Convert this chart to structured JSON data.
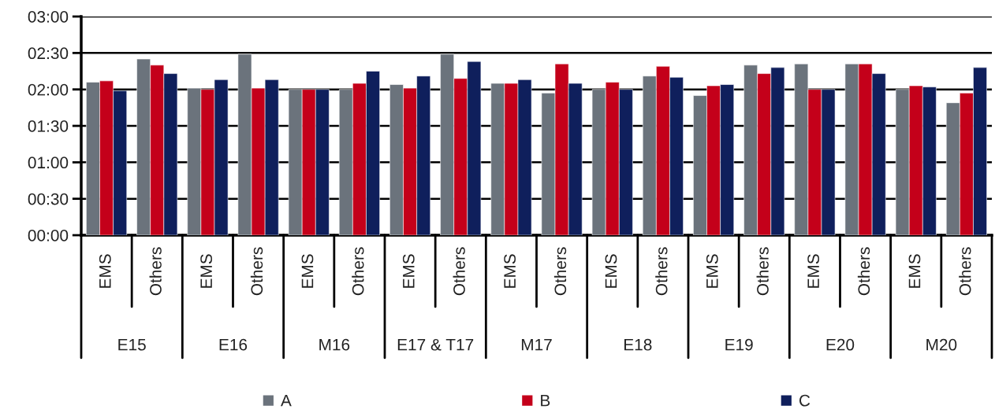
{
  "chart_data": {
    "type": "bar",
    "categories": [
      "EMS",
      "Others",
      "EMS",
      "Others",
      "EMS",
      "Others",
      "EMS",
      "Others",
      "EMS",
      "Others",
      "EMS",
      "Others",
      "EMS",
      "Others",
      "EMS",
      "Others",
      "EMS",
      "Others"
    ],
    "series": [
      {
        "name": "A",
        "color": "#6b737c",
        "values": [
          126,
          145,
          121,
          149,
          120,
          120,
          124,
          149,
          125,
          117,
          120,
          131,
          115,
          140,
          141,
          141,
          120,
          109
        ]
      },
      {
        "name": "B",
        "color": "#c4001a",
        "values": [
          127,
          140,
          120,
          121,
          120,
          125,
          121,
          129,
          125,
          141,
          126,
          139,
          123,
          133,
          120,
          141,
          123,
          117
        ]
      },
      {
        "name": "C",
        "color": "#0f1f5c",
        "values": [
          119,
          133,
          128,
          128,
          120,
          135,
          131,
          143,
          128,
          125,
          120,
          130,
          124,
          138,
          120,
          133,
          122,
          138
        ]
      }
    ],
    "annotations": [
      "E15",
      "E16",
      "M16",
      "E17 & T17",
      "M17",
      "E18",
      "E19",
      "E20",
      "M20"
    ],
    "ylim": [
      0,
      180
    ],
    "yticks": [
      {
        "value": 0,
        "label": "00:00"
      },
      {
        "value": 30,
        "label": "00:30"
      },
      {
        "value": 60,
        "label": "01:00"
      },
      {
        "value": 90,
        "label": "01:30"
      },
      {
        "value": 120,
        "label": "02:00"
      },
      {
        "value": 150,
        "label": "02:30"
      },
      {
        "value": 180,
        "label": "03:00"
      }
    ],
    "grid": "y",
    "legend": "bottom"
  }
}
